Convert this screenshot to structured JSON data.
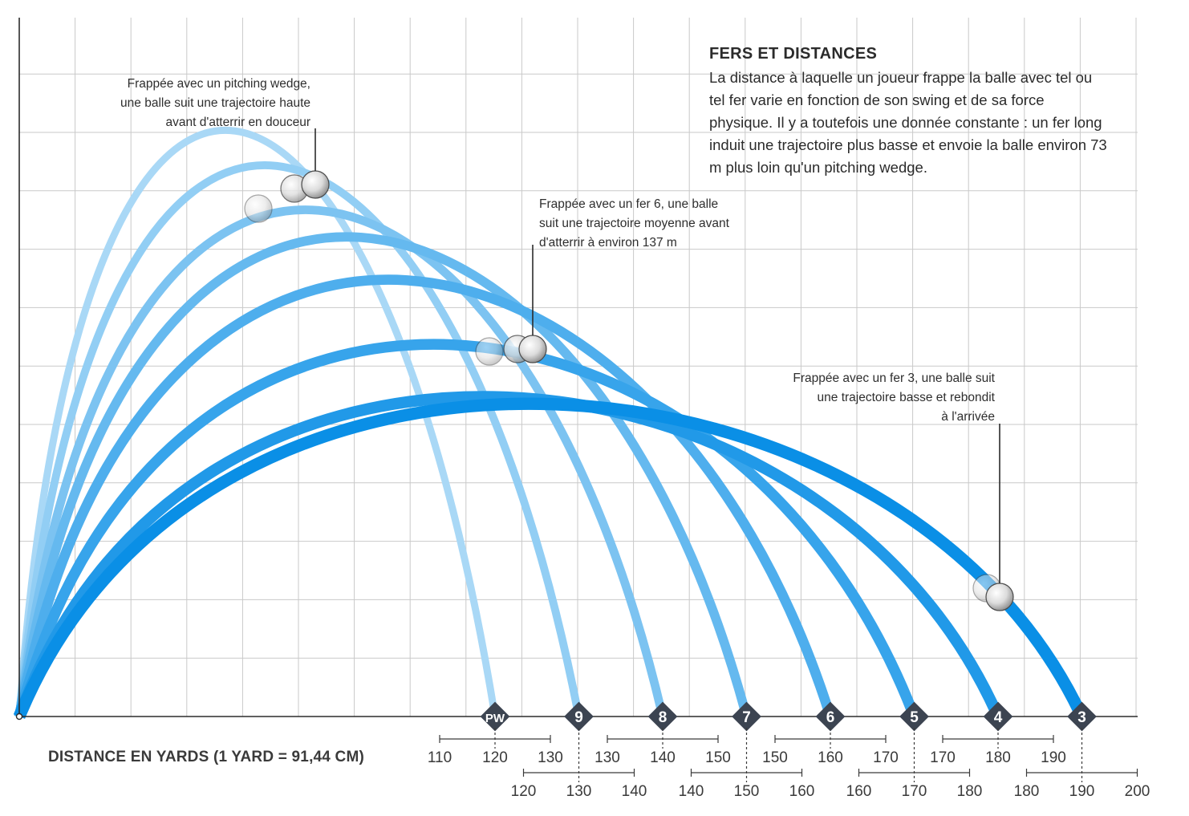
{
  "info": {
    "title": "FERS ET DISTANCES",
    "body": "La distance à laquelle un joueur frappe la balle avec tel ou tel fer varie en fonction de son swing et de sa force physique. Il y a toutefois une donnée constante : un fer long induit une trajectoire plus basse et envoie la balle environ 73 m plus loin qu'un pitching wedge."
  },
  "annotations": {
    "pw": [
      "Frappée avec un pitching wedge,",
      "une balle suit une trajectoire haute",
      "avant d'atterrir en douceur"
    ],
    "iron6": [
      "Frappée avec un fer 6, une balle",
      "suit une trajectoire moyenne avant",
      "d'atterrir à environ 137 m"
    ],
    "iron3": [
      "Frappée avec un fer 3, une balle suit",
      "une trajectoire basse et rebondit",
      "à l'arrivée"
    ]
  },
  "colors": {
    "trajectory_light": "#a9d8f6",
    "trajectory_dark": "#0a8fe6",
    "marker": "#3c4451",
    "grid": "#c9c9c9"
  },
  "chart_data": {
    "type": "line",
    "xlabel": "DISTANCE EN YARDS (1 YARD = 91,44 CM)",
    "ylabel": "",
    "clubs": [
      {
        "label": "PW",
        "carry_yards": 120,
        "range_labels": [
          "110",
          "120",
          "130"
        ],
        "range_row": "upper"
      },
      {
        "label": "9",
        "carry_yards": 130,
        "range_labels": [
          "120",
          "130",
          "140"
        ],
        "range_row": "lower"
      },
      {
        "label": "8",
        "carry_yards": 140,
        "range_labels": [
          "130",
          "140",
          "150"
        ],
        "range_row": "upper"
      },
      {
        "label": "7",
        "carry_yards": 150,
        "range_labels": [
          "140",
          "150",
          "160"
        ],
        "range_row": "lower"
      },
      {
        "label": "6",
        "carry_yards": 160,
        "range_labels": [
          "150",
          "160",
          "170"
        ],
        "range_row": "upper"
      },
      {
        "label": "5",
        "carry_yards": 170,
        "range_labels": [
          "160",
          "170",
          "180"
        ],
        "range_row": "lower"
      },
      {
        "label": "4",
        "carry_yards": 180,
        "range_labels": [
          "170",
          "180",
          "190"
        ],
        "range_row": "upper"
      },
      {
        "label": "3",
        "carry_yards": 190,
        "range_labels": [
          "180",
          "190",
          "200"
        ],
        "range_row": "lower"
      }
    ],
    "grid": true,
    "legend": "none"
  }
}
